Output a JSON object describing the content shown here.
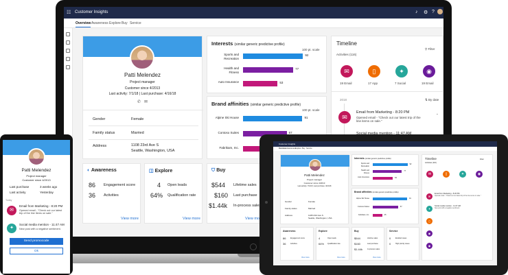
{
  "app": {
    "title": "Customer Insights"
  },
  "tabs": [
    "Overview",
    "Awareness",
    "Explore",
    "Buy",
    "Service"
  ],
  "profile": {
    "name": "Patti Melendez",
    "role": "Project manager",
    "since": "Customer since 4/2013",
    "activity": "Last activity: 7/1/18  |  Last purchase: 4/16/18",
    "fields": [
      {
        "k": "Gender",
        "v": "Female"
      },
      {
        "k": "Family status",
        "v": "Married"
      },
      {
        "k": "Address",
        "v": "1108 23rd Ave S\nSeattle, Washington, USA"
      }
    ]
  },
  "interests": {
    "title": "Interests",
    "subtitle": "(similar generic predictive profile)",
    "scale": "100 pt. scale",
    "items": [
      {
        "label": "Sports and\nRecreation",
        "value": 92
      },
      {
        "label": "Health and\nFitness",
        "value": 77
      },
      {
        "label": "Auto Insurance",
        "value": 53
      }
    ]
  },
  "brands": {
    "title": "Brand affinities",
    "subtitle": "(similar generic predictive profile)",
    "scale": "100 pt. scale",
    "items": [
      {
        "label": "Alpine Ski House",
        "value": 91
      },
      {
        "label": "Contoso Suites",
        "value": 67
      },
      {
        "label": "Fabrikam, Inc.",
        "value": 25
      }
    ]
  },
  "timeline": {
    "title": "Timeline",
    "filter": "Filter",
    "activities_label": "Activities",
    "activities_count": "(116)",
    "summary": [
      {
        "label": "19 Email",
        "color": "#c2185b",
        "icon": "mail"
      },
      {
        "label": "17 App",
        "color": "#ef6c00",
        "icon": "app"
      },
      {
        "label": "7 Social",
        "color": "#26a69a",
        "icon": "social"
      },
      {
        "label": "19 Email",
        "color": "#6a1b9a",
        "icon": "web"
      }
    ],
    "date": "2018",
    "sort": "By date",
    "events": [
      {
        "title": "Email from Marketing - 8:20 PM",
        "desc": "Opened email - \"Check out our latest trip of the line items on sale.\""
      },
      {
        "title": "Social media mention - 11:47 AM",
        "desc": "New post with a negative sentiment."
      }
    ]
  },
  "awareness": {
    "title": "Awareness",
    "rows": [
      {
        "v": "86",
        "l": "Engagement score"
      },
      {
        "v": "36",
        "l": "Activities"
      }
    ],
    "link": "View more"
  },
  "explore": {
    "title": "Explore",
    "rows": [
      {
        "v": "4",
        "l": "Open leads"
      },
      {
        "v": "64%",
        "l": "Qualification rate"
      }
    ],
    "link": "View more"
  },
  "buy": {
    "title": "Buy",
    "rows": [
      {
        "v": "$544",
        "l": "Lifetime sales"
      },
      {
        "v": "$160",
        "l": "Last purchase"
      },
      {
        "v": "$1.44k",
        "l": "In-process sales"
      }
    ],
    "link": "View more"
  },
  "phone": {
    "name": "Patti Melendez",
    "role": "Project manager",
    "since": "Customer since 4/2013",
    "rows": [
      {
        "k": "Last purchase",
        "v": "3 weeks ago"
      },
      {
        "k": "Last activity",
        "v": "Yesterday"
      }
    ],
    "section": "Today",
    "events": [
      {
        "title": "Email from Marketing - 8:20 PM",
        "desc": "Opened email - \"Check out our latest trip of the line items on sale.\""
      },
      {
        "title": "Social media mention - 11:47 AM",
        "desc": "New post with a negative sentiment."
      }
    ],
    "primary_button": "Send promocode",
    "secondary_button": "Ok"
  },
  "tablet": {
    "service_title": "Service",
    "service_rows": [
      {
        "v": "0",
        "l": "Enabled cases"
      },
      {
        "v": "0",
        "l": "High priority cases"
      }
    ]
  }
}
